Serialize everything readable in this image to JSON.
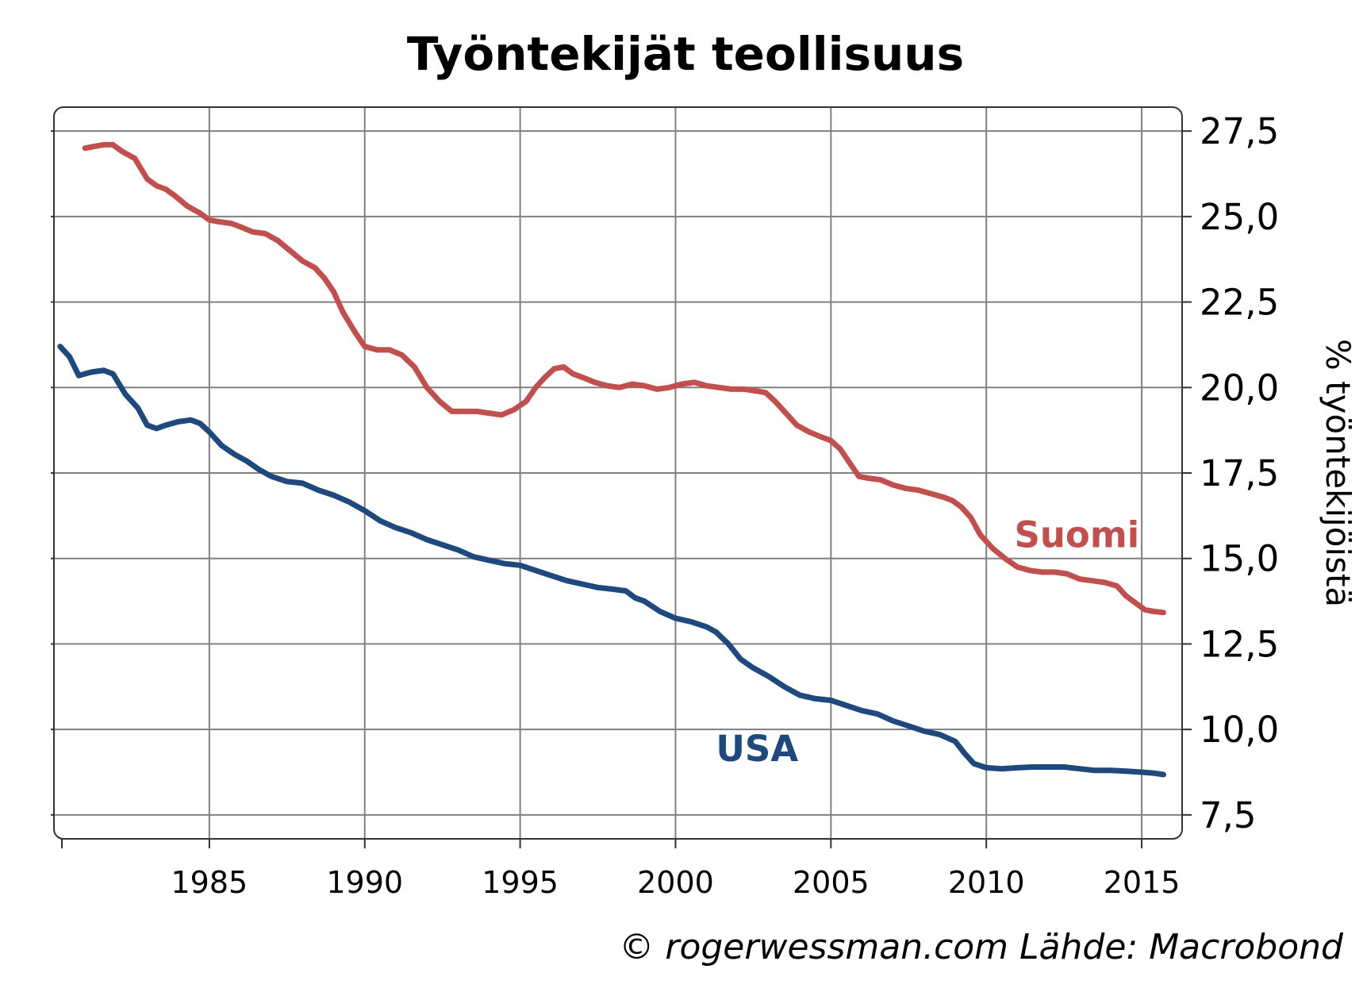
{
  "chart_data": {
    "type": "line",
    "title": "Työntekijät teollisuus",
    "ylabel": "% työntekijöistä",
    "xlabel": "",
    "xlim": [
      1980.0,
      2016.3
    ],
    "ylim": [
      6.8,
      28.2
    ],
    "xticks": [
      1985,
      1990,
      1995,
      2000,
      2005,
      2010,
      2015
    ],
    "xtick_labels": [
      "1985",
      "1990",
      "1995",
      "2000",
      "2005",
      "2010",
      "2015"
    ],
    "yticks": [
      7.5,
      10.0,
      12.5,
      15.0,
      17.5,
      20.0,
      22.5,
      25.0,
      27.5
    ],
    "ytick_labels": [
      "7,5",
      "10,0",
      "12,5",
      "15,0",
      "17,5",
      "20,0",
      "22,5",
      "25,0",
      "27,5"
    ],
    "y_axis_side": "right",
    "grid": true,
    "legend": "none",
    "series": [
      {
        "name": "Suomi",
        "color": "#c0504d",
        "label_pos": [
          2010.9,
          15.7
        ],
        "x": [
          1981.0,
          1981.3,
          1981.6,
          1981.9,
          1982.2,
          1982.6,
          1983.0,
          1983.3,
          1983.6,
          1983.9,
          1984.3,
          1984.7,
          1985.0,
          1985.3,
          1985.7,
          1986.0,
          1986.4,
          1986.8,
          1987.2,
          1987.6,
          1988.0,
          1988.4,
          1988.7,
          1989.0,
          1989.3,
          1989.7,
          1990.0,
          1990.4,
          1990.8,
          1991.2,
          1991.6,
          1992.0,
          1992.4,
          1992.8,
          1993.2,
          1993.6,
          1994.0,
          1994.4,
          1994.8,
          1995.2,
          1995.5,
          1995.8,
          1996.1,
          1996.4,
          1996.7,
          1997.0,
          1997.4,
          1997.8,
          1998.2,
          1998.6,
          1999.0,
          1999.4,
          1999.8,
          2000.2,
          2000.6,
          2001.0,
          2001.4,
          2001.8,
          2002.2,
          2002.6,
          2002.9,
          2003.2,
          2003.5,
          2003.9,
          2004.3,
          2004.7,
          2005.0,
          2005.3,
          2005.6,
          2005.9,
          2006.2,
          2006.6,
          2007.0,
          2007.4,
          2007.8,
          2008.2,
          2008.6,
          2008.9,
          2009.2,
          2009.5,
          2009.8,
          2010.2,
          2010.6,
          2011.0,
          2011.4,
          2011.8,
          2012.2,
          2012.6,
          2013.0,
          2013.4,
          2013.8,
          2014.2,
          2014.5,
          2014.8,
          2015.1,
          2015.4,
          2015.7
        ],
        "values": [
          27.0,
          27.05,
          27.1,
          27.1,
          26.9,
          26.7,
          26.1,
          25.9,
          25.8,
          25.6,
          25.3,
          25.1,
          24.9,
          24.85,
          24.8,
          24.7,
          24.55,
          24.5,
          24.3,
          24.0,
          23.7,
          23.5,
          23.2,
          22.8,
          22.2,
          21.6,
          21.2,
          21.1,
          21.1,
          20.95,
          20.6,
          20.0,
          19.6,
          19.3,
          19.3,
          19.3,
          19.25,
          19.2,
          19.35,
          19.6,
          20.0,
          20.3,
          20.55,
          20.6,
          20.4,
          20.3,
          20.15,
          20.05,
          20.0,
          20.1,
          20.05,
          19.95,
          20.0,
          20.1,
          20.15,
          20.05,
          20.0,
          19.95,
          19.95,
          19.9,
          19.85,
          19.6,
          19.3,
          18.9,
          18.7,
          18.55,
          18.45,
          18.2,
          17.8,
          17.4,
          17.35,
          17.3,
          17.15,
          17.05,
          17.0,
          16.9,
          16.8,
          16.7,
          16.5,
          16.2,
          15.7,
          15.3,
          15.0,
          14.75,
          14.65,
          14.6,
          14.6,
          14.55,
          14.4,
          14.35,
          14.3,
          14.2,
          13.9,
          13.7,
          13.5,
          13.45,
          13.42
        ]
      },
      {
        "name": "USA",
        "color": "#1f497d",
        "label_pos": [
          2001.3,
          9.45
        ],
        "x": [
          1980.2,
          1980.5,
          1980.8,
          1981.2,
          1981.6,
          1981.9,
          1982.3,
          1982.7,
          1983.0,
          1983.3,
          1983.6,
          1984.0,
          1984.4,
          1984.7,
          1985.0,
          1985.4,
          1985.8,
          1986.2,
          1986.6,
          1987.0,
          1987.5,
          1988.0,
          1988.5,
          1989.0,
          1989.5,
          1990.0,
          1990.5,
          1991.0,
          1991.5,
          1992.0,
          1992.5,
          1993.0,
          1993.5,
          1994.0,
          1994.5,
          1995.0,
          1995.5,
          1996.0,
          1996.5,
          1997.0,
          1997.5,
          1998.0,
          1998.4,
          1998.7,
          1999.0,
          1999.5,
          2000.0,
          2000.5,
          2001.0,
          2001.3,
          2001.7,
          2002.1,
          2002.5,
          2003.0,
          2003.5,
          2004.0,
          2004.5,
          2005.0,
          2005.5,
          2006.0,
          2006.5,
          2007.0,
          2007.5,
          2008.0,
          2008.5,
          2009.0,
          2009.3,
          2009.6,
          2010.0,
          2010.5,
          2011.0,
          2011.5,
          2012.0,
          2012.5,
          2013.0,
          2013.5,
          2014.0,
          2014.5,
          2015.0,
          2015.4,
          2015.7
        ],
        "values": [
          21.2,
          20.9,
          20.35,
          20.45,
          20.5,
          20.4,
          19.8,
          19.4,
          18.9,
          18.8,
          18.9,
          19.0,
          19.05,
          18.95,
          18.7,
          18.3,
          18.05,
          17.85,
          17.6,
          17.4,
          17.25,
          17.2,
          17.0,
          16.85,
          16.65,
          16.4,
          16.1,
          15.9,
          15.75,
          15.55,
          15.4,
          15.25,
          15.05,
          14.95,
          14.85,
          14.8,
          14.65,
          14.5,
          14.35,
          14.25,
          14.15,
          14.1,
          14.05,
          13.85,
          13.75,
          13.45,
          13.25,
          13.15,
          13.0,
          12.85,
          12.5,
          12.05,
          11.8,
          11.55,
          11.25,
          11.0,
          10.9,
          10.85,
          10.7,
          10.55,
          10.45,
          10.25,
          10.1,
          9.95,
          9.85,
          9.65,
          9.3,
          9.0,
          8.88,
          8.85,
          8.88,
          8.9,
          8.9,
          8.9,
          8.85,
          8.8,
          8.8,
          8.78,
          8.75,
          8.72,
          8.68
        ]
      }
    ]
  },
  "credit": "© rogerwessman.com Lähde: Macrobond"
}
